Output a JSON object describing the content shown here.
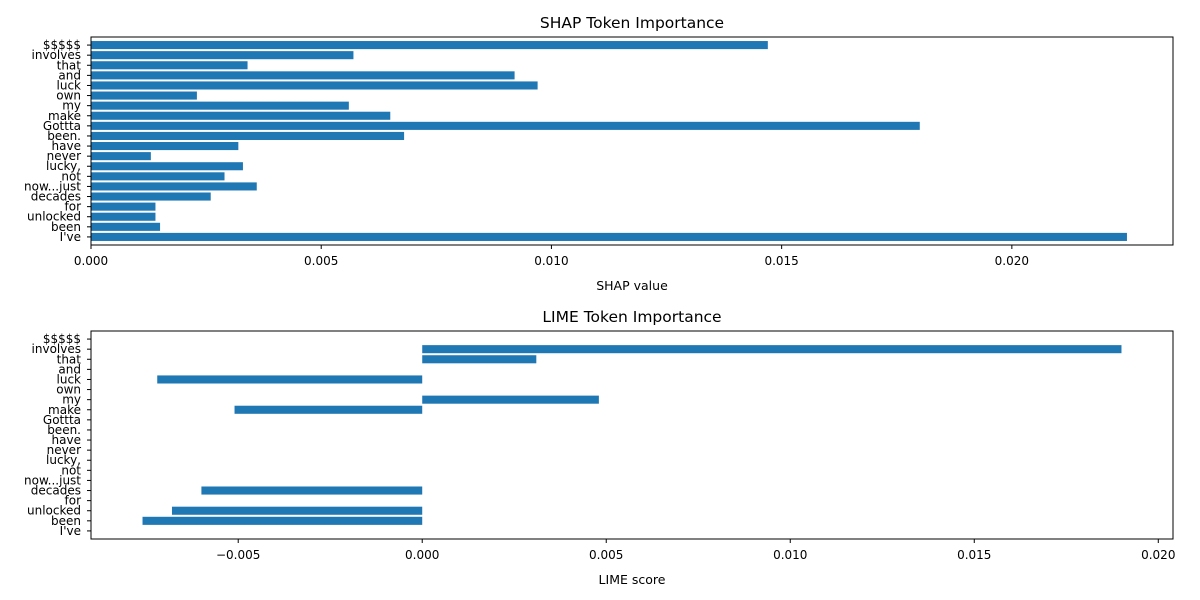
{
  "chart_data": [
    {
      "type": "bar",
      "orientation": "horizontal",
      "title": "SHAP Token Importance",
      "xlabel": "SHAP value",
      "ylabel": "",
      "bar_color": "#1f77b4",
      "xlim": [
        0,
        0.0235
      ],
      "xticks": [
        0.0,
        0.005,
        0.01,
        0.015,
        0.02
      ],
      "xtick_labels": [
        "0.000",
        "0.005",
        "0.010",
        "0.015",
        "0.020"
      ],
      "categories": [
        "$$$$$",
        "involves",
        "that",
        "and",
        "luck",
        "own",
        "my",
        "make",
        "Gottta",
        "been.",
        "have",
        "never",
        "lucky,",
        "not",
        "now...just",
        "decades",
        "for",
        "unlocked",
        "been",
        "I've"
      ],
      "values": [
        0.0147,
        0.0057,
        0.0034,
        0.0092,
        0.0097,
        0.0023,
        0.0056,
        0.0065,
        0.018,
        0.0068,
        0.0032,
        0.0013,
        0.0033,
        0.0029,
        0.0036,
        0.0026,
        0.0014,
        0.0014,
        0.0015,
        0.0225
      ]
    },
    {
      "type": "bar",
      "orientation": "horizontal",
      "title": "LIME Token Importance",
      "xlabel": "LIME score",
      "ylabel": "",
      "bar_color": "#1f77b4",
      "xlim": [
        -0.009,
        0.0204
      ],
      "xticks": [
        -0.005,
        0.0,
        0.005,
        0.01,
        0.015,
        0.02
      ],
      "xtick_labels": [
        "−0.005",
        "0.000",
        "0.005",
        "0.010",
        "0.015",
        "0.020"
      ],
      "categories": [
        "$$$$$",
        "involves",
        "that",
        "and",
        "luck",
        "own",
        "my",
        "make",
        "Gottta",
        "been.",
        "have",
        "never",
        "lucky,",
        "not",
        "now...just",
        "decades",
        "for",
        "unlocked",
        "been",
        "I've"
      ],
      "values": [
        0,
        0.019,
        0.0031,
        0,
        -0.0072,
        0,
        0.0048,
        -0.0051,
        0,
        0,
        0,
        0,
        0,
        0,
        0,
        -0.006,
        0,
        -0.0068,
        -0.0076,
        0
      ]
    }
  ]
}
